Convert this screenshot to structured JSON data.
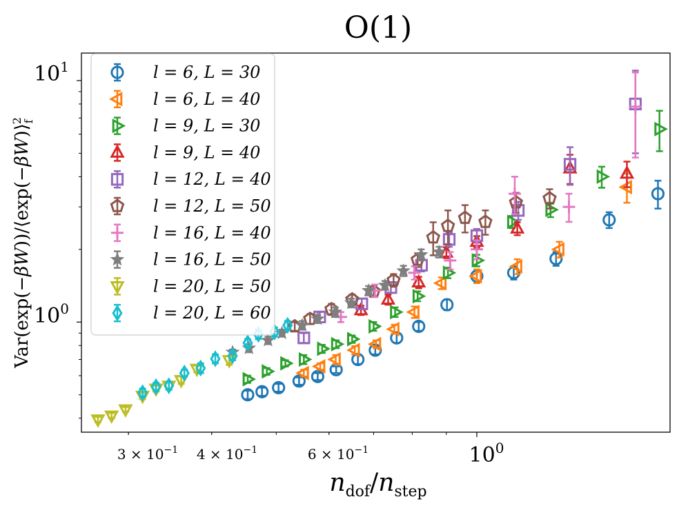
{
  "chart_data": {
    "type": "scatter",
    "title": "O(1)",
    "xlabel": "n_dof/n_step",
    "ylabel": "Var(exp(−βW))/⟨exp(−βW)⟩_f^2",
    "xscale": "log",
    "yscale": "log",
    "xlim": [
      0.255,
      1.95
    ],
    "ylim": [
      0.35,
      13.0
    ],
    "x_ticks": [
      {
        "value": 0.3,
        "label": "3 × 10^−1"
      },
      {
        "value": 0.4,
        "label": "4 × 10^−1"
      },
      {
        "value": 0.6,
        "label": "6 × 10^−1"
      },
      {
        "value": 1.0,
        "label": "10^0"
      }
    ],
    "y_ticks": [
      {
        "value": 1.0,
        "label": "10^0"
      },
      {
        "value": 10.0,
        "label": "10^1"
      }
    ],
    "legend_position": "upper-left",
    "series": [
      {
        "name": "l = 6, L = 30",
        "marker": "circle",
        "color": "#1f77b4",
        "x": [
          0.453,
          0.476,
          0.504,
          0.541,
          0.577,
          0.615,
          0.663,
          0.704,
          0.758,
          0.818,
          0.902,
          1.0,
          1.136,
          1.315,
          1.58,
          1.87
        ],
        "y": [
          0.5,
          0.515,
          0.535,
          0.57,
          0.595,
          0.635,
          0.7,
          0.765,
          0.86,
          0.96,
          1.18,
          1.55,
          1.6,
          1.83,
          2.65,
          3.4
        ],
        "err": [
          0.02,
          0.02,
          0.02,
          0.02,
          0.02,
          0.02,
          0.03,
          0.03,
          0.04,
          0.04,
          0.06,
          0.1,
          0.1,
          0.12,
          0.2,
          0.45
        ]
      },
      {
        "name": "l = 6, L = 40",
        "marker": "triangle-left",
        "color": "#ff7f0e",
        "x": [
          0.55,
          0.582,
          0.614,
          0.656,
          0.706,
          0.752,
          0.806,
          0.885,
          1.0,
          1.15,
          1.33,
          1.68
        ],
        "y": [
          0.615,
          0.655,
          0.7,
          0.765,
          0.81,
          0.935,
          1.1,
          1.45,
          1.55,
          1.7,
          2.0,
          3.62
        ],
        "err": [
          0.02,
          0.02,
          0.03,
          0.03,
          0.03,
          0.04,
          0.06,
          0.08,
          0.1,
          0.12,
          0.15,
          0.5
        ]
      },
      {
        "name": "l = 9, L = 30",
        "marker": "triangle-right",
        "color": "#2ca02c",
        "x": [
          0.453,
          0.484,
          0.516,
          0.55,
          0.586,
          0.615,
          0.65,
          0.7,
          0.754,
          0.815,
          0.905,
          1.0,
          1.13,
          1.29,
          1.54,
          1.88
        ],
        "y": [
          0.58,
          0.625,
          0.675,
          0.7,
          0.775,
          0.81,
          0.85,
          0.96,
          1.1,
          1.28,
          1.6,
          1.8,
          2.6,
          2.92,
          4.0,
          6.3
        ],
        "err": [
          0.02,
          0.02,
          0.02,
          0.03,
          0.03,
          0.03,
          0.03,
          0.04,
          0.05,
          0.06,
          0.08,
          0.1,
          0.15,
          0.2,
          0.4,
          1.2
        ]
      },
      {
        "name": "l = 9, L = 40",
        "marker": "triangle-up",
        "color": "#d62728",
        "x": [
          0.67,
          0.736,
          0.818,
          0.9,
          1.0,
          1.15,
          1.38,
          1.68
        ],
        "y": [
          1.12,
          1.24,
          1.46,
          1.94,
          2.15,
          2.44,
          4.33,
          4.12
        ],
        "err": [
          0.05,
          0.06,
          0.08,
          0.1,
          0.12,
          0.15,
          0.6,
          0.5
        ]
      },
      {
        "name": "l = 12, L = 40",
        "marker": "square",
        "color": "#9467bd",
        "x": [
          0.55,
          0.581,
          0.672,
          0.743,
          0.826,
          0.909,
          1.0,
          1.154,
          1.38,
          1.73
        ],
        "y": [
          0.86,
          1.05,
          1.19,
          1.39,
          1.72,
          2.2,
          2.28,
          2.9,
          4.5,
          8.0
        ],
        "err": [
          0.04,
          0.05,
          0.06,
          0.07,
          0.1,
          0.15,
          0.15,
          0.25,
          0.8,
          3.0
        ]
      },
      {
        "name": "l = 12, L = 50",
        "marker": "pentagon",
        "color": "#8c564b",
        "x": [
          0.533,
          0.562,
          0.605,
          0.65,
          0.7,
          0.75,
          0.815,
          0.86,
          0.905,
          0.96,
          1.03,
          1.145,
          1.286
        ],
        "y": [
          0.96,
          1.03,
          1.13,
          1.24,
          1.34,
          1.49,
          1.81,
          2.24,
          2.5,
          2.7,
          2.6,
          3.13,
          3.25
        ],
        "err": [
          0.04,
          0.05,
          0.06,
          0.06,
          0.07,
          0.09,
          0.12,
          0.35,
          0.4,
          0.35,
          0.3,
          0.3,
          0.3
        ]
      },
      {
        "name": "l = 16, L = 40",
        "marker": "plus",
        "color": "#e377c2",
        "x": [
          0.625,
          0.703,
          0.806,
          0.912,
          1.0,
          1.14,
          1.375,
          1.73
        ],
        "y": [
          1.05,
          1.35,
          1.6,
          1.8,
          2.0,
          3.4,
          3.0,
          7.8
        ],
        "err": [
          0.05,
          0.08,
          0.1,
          0.15,
          0.18,
          0.6,
          0.4,
          3.0
        ]
      },
      {
        "name": "l = 16, L = 50",
        "marker": "star",
        "color": "#7f7f7f",
        "x": [
          0.43,
          0.455,
          0.486,
          0.51,
          0.547,
          0.577,
          0.613,
          0.648,
          0.688,
          0.728,
          0.776,
          0.825,
          0.878
        ],
        "y": [
          0.75,
          0.78,
          0.84,
          0.9,
          0.97,
          1.03,
          1.1,
          1.2,
          1.35,
          1.42,
          1.63,
          1.9,
          1.95
        ],
        "err": [
          0.02,
          0.03,
          0.03,
          0.03,
          0.04,
          0.04,
          0.05,
          0.05,
          0.06,
          0.06,
          0.08,
          0.1,
          0.1
        ]
      },
      {
        "name": "l = 20, L = 50",
        "marker": "triangle-down",
        "color": "#bcbd22",
        "x": [
          0.27,
          0.283,
          0.297,
          0.315,
          0.33,
          0.345,
          0.36,
          0.38,
          0.425
        ],
        "y": [
          0.395,
          0.41,
          0.435,
          0.495,
          0.53,
          0.545,
          0.575,
          0.64,
          0.695
        ],
        "err": [
          0.01,
          0.01,
          0.01,
          0.015,
          0.015,
          0.02,
          0.02,
          0.02,
          0.03
        ]
      },
      {
        "name": "l = 20, L = 60",
        "marker": "diamond",
        "color": "#17becf",
        "x": [
          0.315,
          0.33,
          0.345,
          0.364,
          0.385,
          0.405,
          0.43,
          0.453,
          0.47,
          0.497,
          0.52
        ],
        "y": [
          0.51,
          0.54,
          0.545,
          0.615,
          0.645,
          0.705,
          0.725,
          0.82,
          0.89,
          0.91,
          0.97
        ],
        "err": [
          0.02,
          0.02,
          0.02,
          0.02,
          0.03,
          0.03,
          0.03,
          0.03,
          0.04,
          0.04,
          0.04
        ]
      }
    ]
  }
}
